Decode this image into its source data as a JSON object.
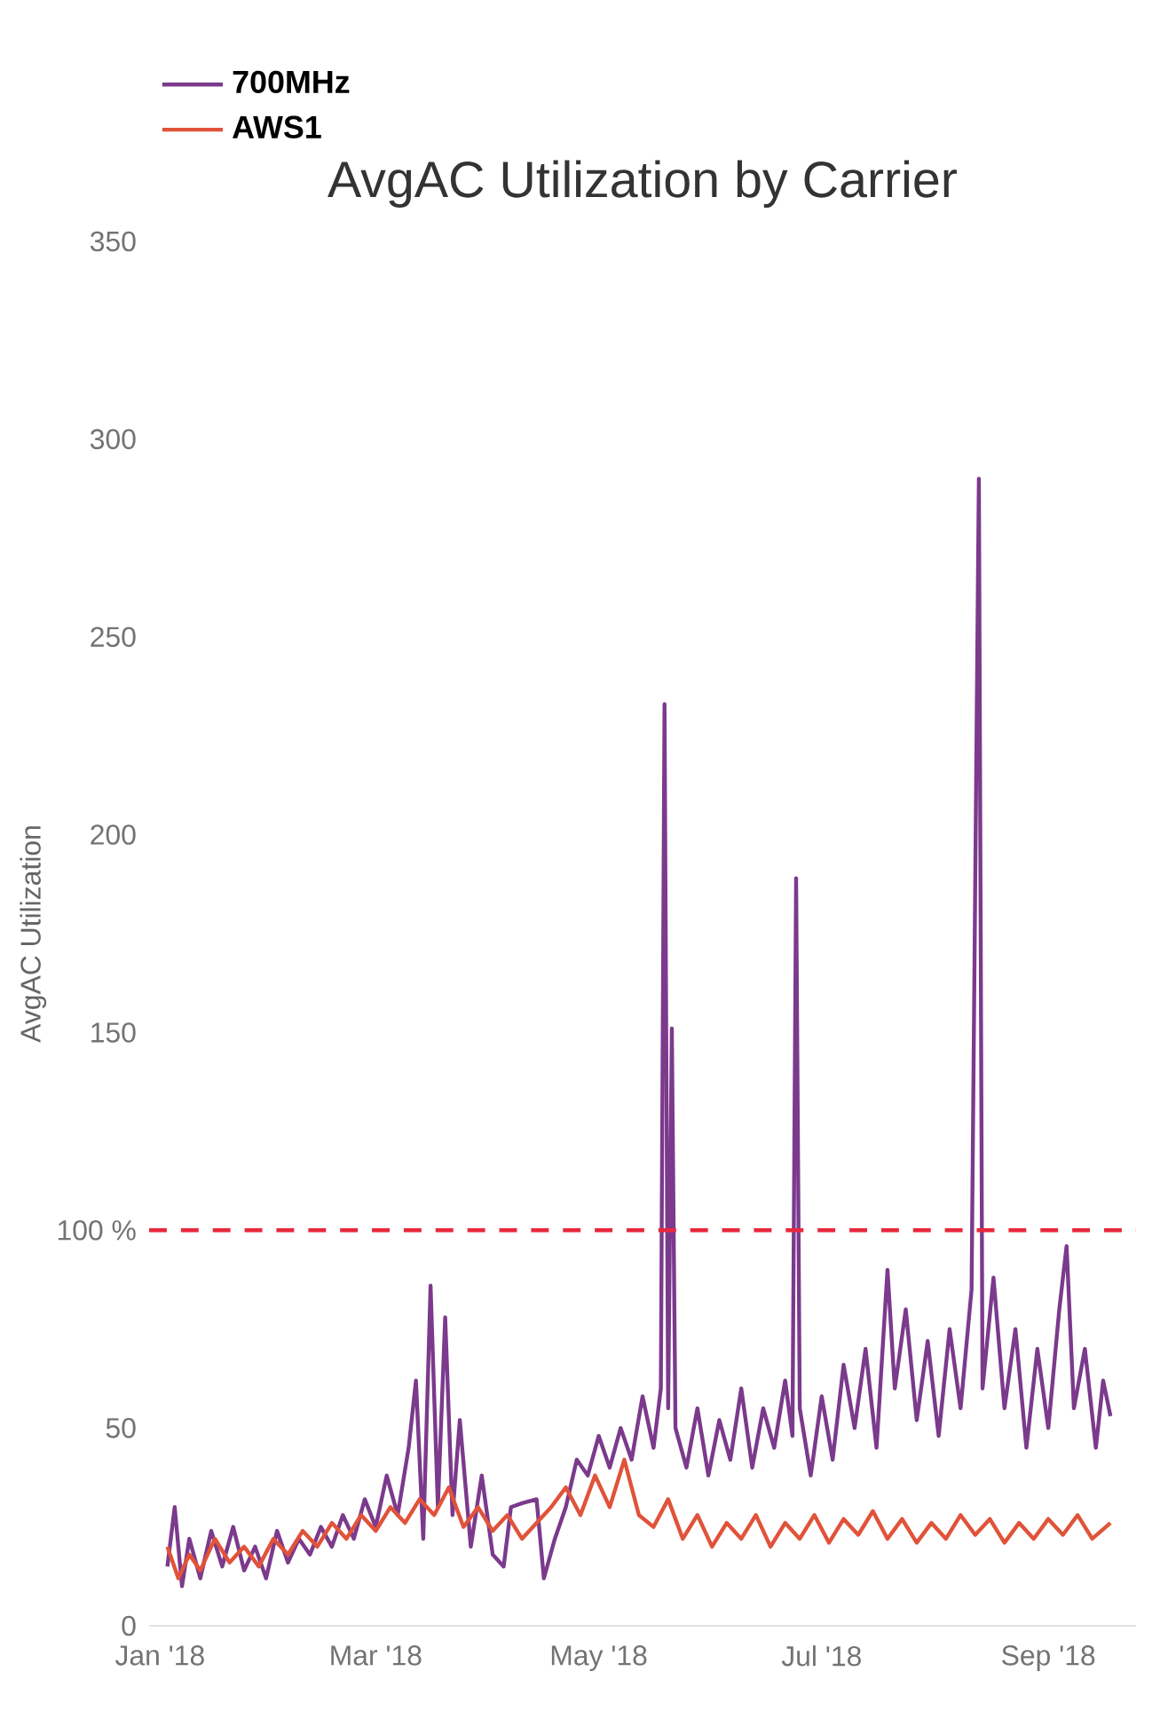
{
  "chart_data": {
    "type": "line",
    "title": "AvgAC Utilization by Carrier",
    "ylabel": "AvgAC Utilization",
    "xlim": [
      "2017-12-29",
      "2018-09-25"
    ],
    "xticks": [
      {
        "value": "2018-01-01",
        "label": "Jan '18"
      },
      {
        "value": "2018-03-01",
        "label": "Mar '18"
      },
      {
        "value": "2018-05-01",
        "label": "May '18"
      },
      {
        "value": "2018-07-01",
        "label": "Jul '18"
      },
      {
        "value": "2018-09-01",
        "label": "Sep '18"
      }
    ],
    "ylim": [
      0,
      350
    ],
    "yticks": [
      0,
      50,
      {
        "value": 100,
        "label": "100 %"
      },
      150,
      200,
      250,
      300,
      350
    ],
    "legend": "top left",
    "ref_lines": [
      {
        "axis": "y",
        "value": 100,
        "color": "#e8283c",
        "line_style": "dashed"
      }
    ],
    "series": [
      {
        "name": "700MHz",
        "color": "#7b3a8c",
        "x": [
          "2018-01-03",
          "2018-01-05",
          "2018-01-07",
          "2018-01-09",
          "2018-01-12",
          "2018-01-15",
          "2018-01-18",
          "2018-01-21",
          "2018-01-24",
          "2018-01-27",
          "2018-01-30",
          "2018-02-02",
          "2018-02-05",
          "2018-02-08",
          "2018-02-11",
          "2018-02-14",
          "2018-02-17",
          "2018-02-20",
          "2018-02-23",
          "2018-02-26",
          "2018-03-01",
          "2018-03-04",
          "2018-03-07",
          "2018-03-10",
          "2018-03-12",
          "2018-03-14",
          "2018-03-16",
          "2018-03-18",
          "2018-03-20",
          "2018-03-22",
          "2018-03-24",
          "2018-03-27",
          "2018-03-30",
          "2018-04-02",
          "2018-04-05",
          "2018-04-07",
          "2018-04-10",
          "2018-04-14",
          "2018-04-16",
          "2018-04-19",
          "2018-04-22",
          "2018-04-25",
          "2018-04-28",
          "2018-05-01",
          "2018-05-04",
          "2018-05-07",
          "2018-05-10",
          "2018-05-13",
          "2018-05-16",
          "2018-05-18",
          "2018-05-19",
          "2018-05-20",
          "2018-05-21",
          "2018-05-22",
          "2018-05-25",
          "2018-05-28",
          "2018-05-31",
          "2018-06-03",
          "2018-06-06",
          "2018-06-09",
          "2018-06-12",
          "2018-06-15",
          "2018-06-18",
          "2018-06-21",
          "2018-06-23",
          "2018-06-24",
          "2018-06-25",
          "2018-06-28",
          "2018-07-01",
          "2018-07-04",
          "2018-07-07",
          "2018-07-10",
          "2018-07-13",
          "2018-07-16",
          "2018-07-19",
          "2018-07-21",
          "2018-07-24",
          "2018-07-27",
          "2018-07-30",
          "2018-08-02",
          "2018-08-05",
          "2018-08-08",
          "2018-08-11",
          "2018-08-13",
          "2018-08-14",
          "2018-08-17",
          "2018-08-20",
          "2018-08-23",
          "2018-08-26",
          "2018-08-29",
          "2018-09-01",
          "2018-09-04",
          "2018-09-06",
          "2018-09-08",
          "2018-09-11",
          "2018-09-14",
          "2018-09-16",
          "2018-09-18"
        ],
        "values": [
          15,
          30,
          10,
          22,
          12,
          24,
          15,
          25,
          14,
          20,
          12,
          24,
          16,
          22,
          18,
          25,
          20,
          28,
          22,
          32,
          25,
          38,
          28,
          45,
          62,
          22,
          86,
          30,
          78,
          28,
          52,
          20,
          38,
          18,
          15,
          30,
          31,
          32,
          12,
          22,
          30,
          42,
          38,
          48,
          40,
          50,
          42,
          58,
          45,
          60,
          233,
          55,
          151,
          50,
          40,
          55,
          38,
          52,
          42,
          60,
          40,
          55,
          45,
          62,
          48,
          189,
          55,
          38,
          58,
          42,
          66,
          50,
          70,
          45,
          90,
          60,
          80,
          52,
          72,
          48,
          75,
          55,
          85,
          290,
          60,
          88,
          55,
          75,
          45,
          70,
          50,
          80,
          96,
          55,
          70,
          45,
          62,
          53
        ]
      },
      {
        "name": "AWS1",
        "color": "#e0533a",
        "x": [
          "2018-01-03",
          "2018-01-06",
          "2018-01-09",
          "2018-01-12",
          "2018-01-16",
          "2018-01-20",
          "2018-01-24",
          "2018-01-28",
          "2018-02-01",
          "2018-02-05",
          "2018-02-09",
          "2018-02-13",
          "2018-02-17",
          "2018-02-21",
          "2018-02-25",
          "2018-03-01",
          "2018-03-05",
          "2018-03-09",
          "2018-03-13",
          "2018-03-17",
          "2018-03-21",
          "2018-03-25",
          "2018-03-29",
          "2018-04-02",
          "2018-04-06",
          "2018-04-10",
          "2018-04-14",
          "2018-04-18",
          "2018-04-22",
          "2018-04-26",
          "2018-04-30",
          "2018-05-04",
          "2018-05-08",
          "2018-05-12",
          "2018-05-16",
          "2018-05-20",
          "2018-05-24",
          "2018-05-28",
          "2018-06-01",
          "2018-06-05",
          "2018-06-09",
          "2018-06-13",
          "2018-06-17",
          "2018-06-21",
          "2018-06-25",
          "2018-06-29",
          "2018-07-03",
          "2018-07-07",
          "2018-07-11",
          "2018-07-15",
          "2018-07-19",
          "2018-07-23",
          "2018-07-27",
          "2018-07-31",
          "2018-08-04",
          "2018-08-08",
          "2018-08-12",
          "2018-08-16",
          "2018-08-20",
          "2018-08-24",
          "2018-08-28",
          "2018-09-01",
          "2018-09-05",
          "2018-09-09",
          "2018-09-13",
          "2018-09-18"
        ],
        "values": [
          20,
          12,
          18,
          14,
          22,
          16,
          20,
          15,
          22,
          18,
          24,
          20,
          26,
          22,
          28,
          24,
          30,
          26,
          32,
          28,
          35,
          25,
          30,
          24,
          28,
          22,
          26,
          30,
          35,
          28,
          38,
          30,
          42,
          28,
          25,
          32,
          22,
          28,
          20,
          26,
          22,
          28,
          20,
          26,
          22,
          28,
          21,
          27,
          23,
          29,
          22,
          27,
          21,
          26,
          22,
          28,
          23,
          27,
          21,
          26,
          22,
          27,
          23,
          28,
          22,
          26
        ]
      }
    ]
  }
}
